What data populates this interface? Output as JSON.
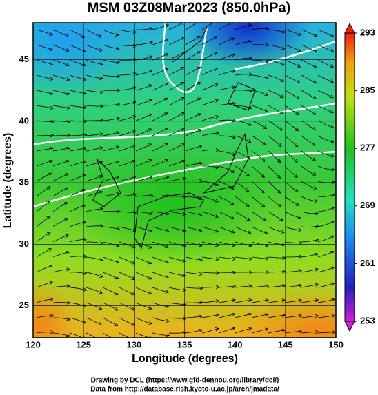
{
  "title": "MSM 03Z08Mar2023 (850.0hPa)",
  "x_axis": {
    "label": "Longitude (degrees)",
    "lim": [
      120,
      150
    ],
    "ticks": [
      120,
      125,
      130,
      135,
      140,
      145,
      150
    ]
  },
  "y_axis": {
    "label": "Latitude  (degrees)",
    "lim": [
      22.4,
      48
    ],
    "ticks": [
      25,
      30,
      35,
      40,
      45
    ]
  },
  "colorbar": {
    "lim": [
      253,
      293
    ],
    "ticks": [
      253,
      261,
      269,
      277,
      285,
      293
    ]
  },
  "credits": [
    "Drawing by DCL (https://www.gfd-dennou.org/library/dcl/)",
    "Data from http://database.rish.kyoto-u.ac.jp/arch/jmadata/"
  ]
}
